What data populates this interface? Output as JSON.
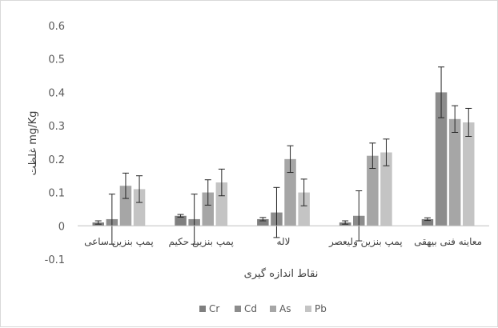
{
  "chart_data": {
    "type": "bar",
    "title": "",
    "xlabel": "نقاط اندازه گیری",
    "ylabel": "غلظت mg/Kg",
    "ylim": [
      -0.1,
      0.6
    ],
    "yticks": [
      -0.1,
      0,
      0.1,
      0.2,
      0.3,
      0.4,
      0.5,
      0.6
    ],
    "ytick_labels": [
      "-0.1",
      "0",
      "0.1",
      "0.2",
      "0.3",
      "0.4",
      "0.5",
      "0.6"
    ],
    "grid": false,
    "legend_position": "bottom",
    "error_bars": true,
    "categories": [
      "پمپ بنزین ساعی",
      "پمپ بنزین حکیم",
      "لاله",
      "پمپ بنزین ولیعصر",
      "معاینه فنی بیهقی"
    ],
    "series": [
      {
        "name": "Cr",
        "color": "#7f7f7f",
        "values": [
          0.01,
          0.03,
          0.02,
          0.01,
          0.02
        ],
        "errors": [
          0.005,
          0.004,
          0.005,
          0.005,
          0.004
        ]
      },
      {
        "name": "Cd",
        "color": "#8c8c8c",
        "values": [
          0.02,
          0.02,
          0.04,
          0.03,
          0.4
        ],
        "errors": [
          0.075,
          0.075,
          0.075,
          0.075,
          0.076
        ]
      },
      {
        "name": "As",
        "color": "#a6a6a6",
        "values": [
          0.12,
          0.1,
          0.2,
          0.21,
          0.32
        ],
        "errors": [
          0.038,
          0.038,
          0.04,
          0.038,
          0.04
        ]
      },
      {
        "name": "Pb",
        "color": "#c4c4c4",
        "values": [
          0.11,
          0.13,
          0.1,
          0.22,
          0.31
        ],
        "errors": [
          0.04,
          0.04,
          0.04,
          0.04,
          0.042
        ]
      }
    ]
  }
}
